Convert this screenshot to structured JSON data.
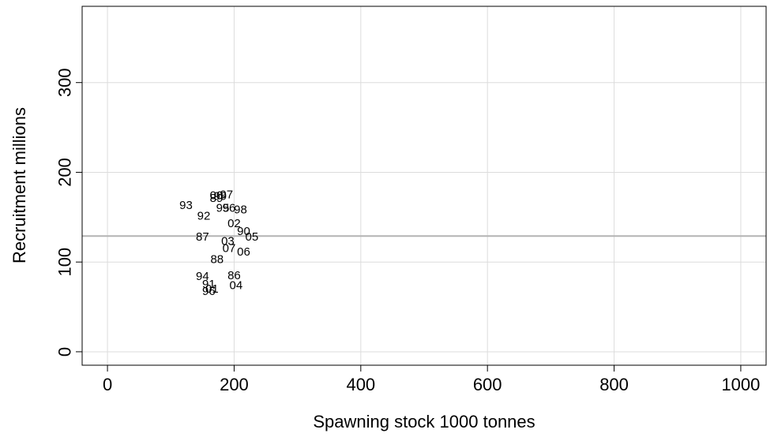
{
  "chart_data": {
    "type": "scatter",
    "title": "",
    "xlabel": "Spawning stock 1000 tonnes",
    "ylabel": "Recruitment millions",
    "xlim": [
      -40,
      1040
    ],
    "ylim": [
      -15,
      385
    ],
    "xticks": [
      0,
      200,
      400,
      600,
      800,
      1000
    ],
    "xtick_labels": [
      "0",
      "200",
      "400",
      "600",
      "800",
      "1000"
    ],
    "yticks": [
      0,
      100,
      200,
      300
    ],
    "ytick_labels": [
      "0",
      "100",
      "200",
      "300"
    ],
    "grid": true,
    "reference_line": {
      "orientation": "horizontal",
      "y": 129,
      "color": "#b4b4b4"
    },
    "points": [
      {
        "label": "00",
        "x": 172,
        "y": 174
      },
      {
        "label": "97",
        "x": 188,
        "y": 175
      },
      {
        "label": "99",
        "x": 178,
        "y": 173
      },
      {
        "label": "89",
        "x": 172,
        "y": 171
      },
      {
        "label": "93",
        "x": 124,
        "y": 163
      },
      {
        "label": "95",
        "x": 182,
        "y": 160
      },
      {
        "label": "96",
        "x": 192,
        "y": 160
      },
      {
        "label": "98",
        "x": 210,
        "y": 158
      },
      {
        "label": "92",
        "x": 152,
        "y": 151
      },
      {
        "label": "02",
        "x": 200,
        "y": 143
      },
      {
        "label": "90",
        "x": 215,
        "y": 134
      },
      {
        "label": "05",
        "x": 228,
        "y": 128
      },
      {
        "label": "87",
        "x": 150,
        "y": 128
      },
      {
        "label": "03",
        "x": 190,
        "y": 123
      },
      {
        "label": "07",
        "x": 192,
        "y": 115
      },
      {
        "label": "06",
        "x": 215,
        "y": 111
      },
      {
        "label": "88",
        "x": 173,
        "y": 103
      },
      {
        "label": "94",
        "x": 150,
        "y": 84
      },
      {
        "label": "86",
        "x": 200,
        "y": 85
      },
      {
        "label": "04",
        "x": 203,
        "y": 74
      },
      {
        "label": "91",
        "x": 160,
        "y": 75
      },
      {
        "label": "01",
        "x": 165,
        "y": 70
      },
      {
        "label": "96",
        "x": 160,
        "y": 67
      }
    ]
  }
}
